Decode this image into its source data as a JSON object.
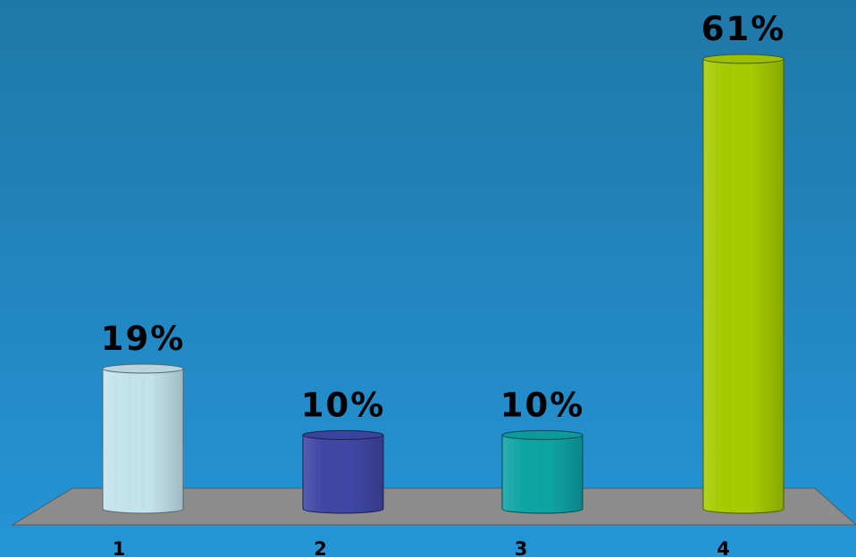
{
  "chart_data": {
    "type": "bar",
    "bar_shape": "cylinder",
    "categories": [
      "1",
      "2",
      "3",
      "4"
    ],
    "values": [
      19,
      10,
      10,
      61
    ],
    "data_labels": [
      "19%",
      "10%",
      "10%",
      "61%"
    ],
    "value_unit": "%",
    "ylim": [
      0,
      61
    ],
    "grid": false,
    "legend": "none",
    "bar_colors": [
      "#c3e3ec",
      "#3f47a4",
      "#0fa4a4",
      "#a6cc00"
    ],
    "floor_color": "#8c8c8c",
    "background_color": "#2287c1"
  }
}
